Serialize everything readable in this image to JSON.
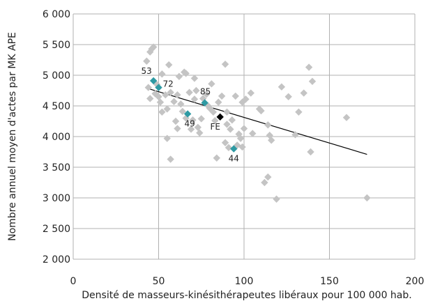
{
  "chart_data": {
    "type": "scatter",
    "title": "",
    "xlabel": "Densité de masseurs-kinésithérapeutes libéraux pour 100 000 hab.",
    "ylabel": "Nombre annuel moyen d'actes par MK APE",
    "xlim": [
      0,
      200
    ],
    "ylim": [
      2000,
      6000
    ],
    "x_ticks": [
      0,
      50,
      100,
      150,
      200
    ],
    "x_tick_labels": [
      "0",
      "50",
      "100",
      "150",
      "200"
    ],
    "y_ticks": [
      2000,
      2500,
      3000,
      3500,
      4000,
      4500,
      5000,
      5500,
      6000
    ],
    "y_tick_labels": [
      "2 000",
      "2 500",
      "3 000",
      "3 500",
      "4 000",
      "4 500",
      "5 000",
      "5 500",
      "6 000"
    ],
    "grid": true,
    "colors": {
      "other": "#c4c4c4",
      "highlight": "#2e9aa3",
      "france": "#000000",
      "trend": "#000000",
      "grid": "#b0b0b0"
    },
    "series": [
      {
        "role": "other",
        "points": [
          [
            43,
            5230
          ],
          [
            45,
            5380
          ],
          [
            46,
            5430
          ],
          [
            47,
            5460
          ],
          [
            44,
            4800
          ],
          [
            45,
            4620
          ],
          [
            48,
            4700
          ],
          [
            49,
            4850
          ],
          [
            50,
            4650
          ],
          [
            51,
            4560
          ],
          [
            52,
            4400
          ],
          [
            52,
            5020
          ],
          [
            54,
            4680
          ],
          [
            55,
            4450
          ],
          [
            55,
            3970
          ],
          [
            56,
            5170
          ],
          [
            57,
            3630
          ],
          [
            57,
            4720
          ],
          [
            59,
            4570
          ],
          [
            60,
            4250
          ],
          [
            61,
            4130
          ],
          [
            61,
            4680
          ],
          [
            62,
            4980
          ],
          [
            63,
            4530
          ],
          [
            64,
            4410
          ],
          [
            65,
            5050
          ],
          [
            66,
            4300
          ],
          [
            66,
            5030
          ],
          [
            68,
            4720
          ],
          [
            69,
            4120
          ],
          [
            70,
            4270
          ],
          [
            71,
            4950
          ],
          [
            71,
            4610
          ],
          [
            72,
            4750
          ],
          [
            73,
            4150
          ],
          [
            74,
            4060
          ],
          [
            75,
            4290
          ],
          [
            76,
            4620
          ],
          [
            78,
            4690
          ],
          [
            79,
            4500
          ],
          [
            80,
            4460
          ],
          [
            81,
            4860
          ],
          [
            82,
            4400
          ],
          [
            83,
            4260
          ],
          [
            84,
            3650
          ],
          [
            85,
            4560
          ],
          [
            87,
            4660
          ],
          [
            89,
            5180
          ],
          [
            89,
            3900
          ],
          [
            90,
            4200
          ],
          [
            90,
            4400
          ],
          [
            91,
            3820
          ],
          [
            92,
            4120
          ],
          [
            93,
            4270
          ],
          [
            95,
            4660
          ],
          [
            96,
            3860
          ],
          [
            97,
            4040
          ],
          [
            98,
            3970
          ],
          [
            99,
            4560
          ],
          [
            99,
            3830
          ],
          [
            100,
            4130
          ],
          [
            101,
            4610
          ],
          [
            104,
            4710
          ],
          [
            105,
            4050
          ],
          [
            109,
            4450
          ],
          [
            110,
            4420
          ],
          [
            112,
            3250
          ],
          [
            114,
            3340
          ],
          [
            114,
            4190
          ],
          [
            115,
            4020
          ],
          [
            116,
            3940
          ],
          [
            119,
            2980
          ],
          [
            122,
            4810
          ],
          [
            126,
            4650
          ],
          [
            130,
            4030
          ],
          [
            132,
            4400
          ],
          [
            135,
            4710
          ],
          [
            138,
            5130
          ],
          [
            139,
            3750
          ],
          [
            140,
            4900
          ],
          [
            160,
            4310
          ],
          [
            172,
            3000
          ]
        ]
      },
      {
        "role": "highlight",
        "points": [
          [
            47,
            4910,
            "53"
          ],
          [
            50,
            4800,
            "72"
          ],
          [
            67,
            4370,
            "49"
          ],
          [
            77,
            4550,
            "85"
          ],
          [
            94,
            3800,
            "44"
          ]
        ]
      },
      {
        "role": "france",
        "points": [
          [
            86,
            4320,
            "FE"
          ]
        ]
      }
    ],
    "trendline": {
      "from": [
        43,
        4790
      ],
      "to": [
        172,
        3710
      ]
    }
  }
}
